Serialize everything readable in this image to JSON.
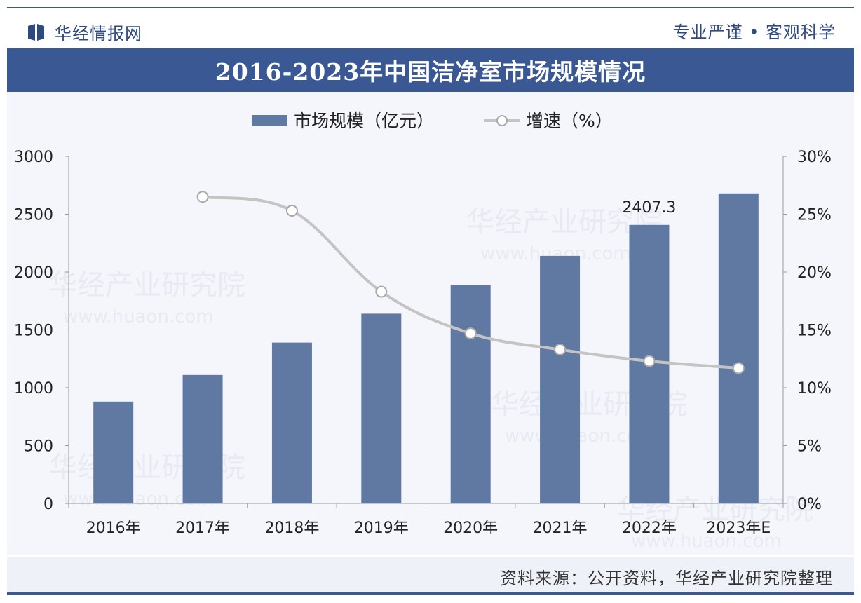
{
  "header": {
    "brand": "华经情报网",
    "slogan": "专业严谨 • 客观科学",
    "title": "2016-2023年中国洁净室市场规模情况"
  },
  "watermark": {
    "text": "华经产业研究院",
    "url": "www.huaon.com"
  },
  "footer": {
    "source": "资料来源：公开资料，华经产业研究院整理"
  },
  "colors": {
    "bar": "#6079a3",
    "line": "#c4c4c4",
    "brand": "#3a5894"
  },
  "chart_data": {
    "type": "bar",
    "title": "2016-2023年中国洁净室市场规模情况",
    "categories": [
      "2016年",
      "2017年",
      "2018年",
      "2019年",
      "2020年",
      "2021年",
      "2022年",
      "2023年E"
    ],
    "series": [
      {
        "name": "市场规模（亿元）",
        "type": "bar",
        "axis": "left",
        "values": [
          880,
          1110,
          1390,
          1640,
          1890,
          2140,
          2407.3,
          2680
        ]
      },
      {
        "name": "增速（%）",
        "type": "line",
        "axis": "right",
        "values": [
          null,
          26.5,
          25.3,
          18.3,
          14.7,
          13.3,
          12.3,
          11.7
        ]
      }
    ],
    "data_labels": [
      {
        "series": 0,
        "index": 6,
        "text": "2407.3"
      }
    ],
    "y_left": {
      "min": 0,
      "max": 3000,
      "ticks": [
        "0",
        "500",
        "1000",
        "1500",
        "2000",
        "2500",
        "3000"
      ]
    },
    "y_right": {
      "min": 0,
      "max": 30,
      "ticks": [
        "0%",
        "5%",
        "10%",
        "15%",
        "20%",
        "25%",
        "30%"
      ]
    },
    "legend": "top-center"
  }
}
